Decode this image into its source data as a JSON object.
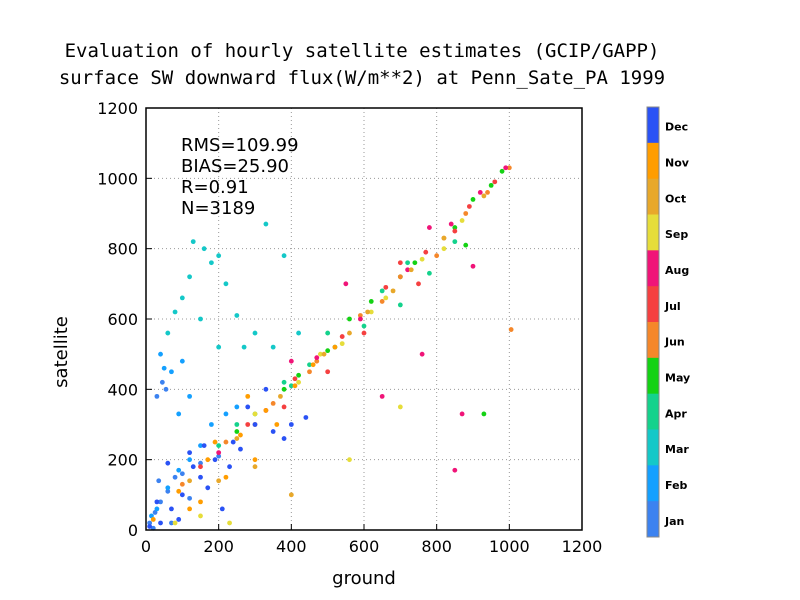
{
  "chart_data": {
    "type": "scatter",
    "title": [
      "Evaluation of hourly satellite estimates (GCIP/GAPP)",
      "surface SW downward flux(W/m**2) at Penn_Sate_PA 1999"
    ],
    "xlabel": "ground",
    "ylabel": "satellite",
    "xlim": [
      0,
      1200
    ],
    "ylim": [
      0,
      1200
    ],
    "xticks": [
      0,
      200,
      400,
      600,
      800,
      1000,
      1200
    ],
    "yticks": [
      0,
      200,
      400,
      600,
      800,
      1000,
      1200
    ],
    "grid": true,
    "stats": [
      "RMS=109.99",
      "BIAS=25.90",
      "R=0.91",
      "N=3189"
    ],
    "legend": {
      "placement": "right",
      "entries": [
        {
          "label": "Dec",
          "color": "#2a52f5"
        },
        {
          "label": "Nov",
          "color": "#ff9d00"
        },
        {
          "label": "Oct",
          "color": "#e8a82a"
        },
        {
          "label": "Sep",
          "color": "#e6dd3a"
        },
        {
          "label": "Aug",
          "color": "#f01478"
        },
        {
          "label": "Jul",
          "color": "#f54040"
        },
        {
          "label": "Jun",
          "color": "#f5872a"
        },
        {
          "label": "May",
          "color": "#14d214"
        },
        {
          "label": "Apr",
          "color": "#14d28c"
        },
        {
          "label": "Mar",
          "color": "#14c8c8"
        },
        {
          "label": "Feb",
          "color": "#14a0ff"
        },
        {
          "label": "Jan",
          "color": "#3c82f0"
        }
      ]
    },
    "series": [
      {
        "name": "Jan",
        "points": [
          [
            10,
            20
          ],
          [
            25,
            50
          ],
          [
            40,
            80
          ],
          [
            60,
            110
          ],
          [
            80,
            150
          ],
          [
            30,
            380
          ],
          [
            45,
            420
          ],
          [
            20,
            5
          ],
          [
            70,
            20
          ],
          [
            100,
            160
          ],
          [
            150,
            190
          ],
          [
            200,
            210
          ],
          [
            120,
            90
          ],
          [
            35,
            140
          ],
          [
            55,
            400
          ]
        ]
      },
      {
        "name": "Feb",
        "points": [
          [
            30,
            60
          ],
          [
            60,
            120
          ],
          [
            90,
            170
          ],
          [
            120,
            200
          ],
          [
            150,
            240
          ],
          [
            50,
            460
          ],
          [
            40,
            500
          ],
          [
            70,
            450
          ],
          [
            100,
            480
          ],
          [
            120,
            380
          ],
          [
            180,
            300
          ],
          [
            220,
            330
          ],
          [
            90,
            330
          ],
          [
            250,
            350
          ],
          [
            15,
            40
          ]
        ]
      },
      {
        "name": "Mar",
        "points": [
          [
            100,
            660
          ],
          [
            130,
            820
          ],
          [
            160,
            800
          ],
          [
            180,
            760
          ],
          [
            200,
            780
          ],
          [
            220,
            700
          ],
          [
            60,
            560
          ],
          [
            80,
            620
          ],
          [
            150,
            600
          ],
          [
            300,
            560
          ],
          [
            350,
            520
          ],
          [
            420,
            560
          ],
          [
            250,
            610
          ],
          [
            120,
            720
          ],
          [
            330,
            870
          ],
          [
            380,
            780
          ],
          [
            270,
            520
          ],
          [
            200,
            520
          ]
        ]
      },
      {
        "name": "Apr",
        "points": [
          [
            200,
            240
          ],
          [
            300,
            330
          ],
          [
            380,
            420
          ],
          [
            450,
            470
          ],
          [
            520,
            520
          ],
          [
            600,
            580
          ],
          [
            700,
            640
          ],
          [
            780,
            730
          ],
          [
            850,
            820
          ],
          [
            250,
            300
          ],
          [
            400,
            410
          ],
          [
            500,
            560
          ],
          [
            650,
            680
          ],
          [
            720,
            760
          ]
        ]
      },
      {
        "name": "May",
        "points": [
          [
            250,
            280
          ],
          [
            380,
            400
          ],
          [
            500,
            510
          ],
          [
            620,
            650
          ],
          [
            740,
            760
          ],
          [
            850,
            860
          ],
          [
            950,
            980
          ],
          [
            900,
            940
          ],
          [
            880,
            810
          ],
          [
            980,
            1020
          ],
          [
            700,
            720
          ],
          [
            560,
            600
          ],
          [
            420,
            440
          ],
          [
            930,
            330
          ]
        ]
      },
      {
        "name": "Jun",
        "points": [
          [
            100,
            130
          ],
          [
            220,
            250
          ],
          [
            350,
            360
          ],
          [
            470,
            480
          ],
          [
            590,
            610
          ],
          [
            700,
            720
          ],
          [
            820,
            830
          ],
          [
            940,
            960
          ],
          [
            1000,
            1030
          ],
          [
            300,
            300
          ],
          [
            450,
            450
          ],
          [
            650,
            650
          ],
          [
            800,
            780
          ],
          [
            880,
            900
          ],
          [
            1005,
            570
          ]
        ]
      },
      {
        "name": "Jul",
        "points": [
          [
            150,
            180
          ],
          [
            280,
            300
          ],
          [
            410,
            430
          ],
          [
            540,
            550
          ],
          [
            660,
            690
          ],
          [
            770,
            790
          ],
          [
            890,
            920
          ],
          [
            960,
            990
          ],
          [
            600,
            560
          ],
          [
            750,
            700
          ],
          [
            500,
            450
          ],
          [
            850,
            850
          ],
          [
            380,
            350
          ],
          [
            700,
            760
          ]
        ]
      },
      {
        "name": "Aug",
        "points": [
          [
            200,
            220
          ],
          [
            330,
            340
          ],
          [
            470,
            490
          ],
          [
            590,
            600
          ],
          [
            720,
            740
          ],
          [
            840,
            870
          ],
          [
            920,
            960
          ],
          [
            850,
            170
          ],
          [
            870,
            330
          ],
          [
            650,
            380
          ],
          [
            760,
            500
          ],
          [
            900,
            750
          ],
          [
            550,
            700
          ],
          [
            400,
            480
          ],
          [
            780,
            860
          ],
          [
            990,
            1030
          ]
        ]
      },
      {
        "name": "Sep",
        "points": [
          [
            80,
            20
          ],
          [
            150,
            40
          ],
          [
            230,
            20
          ],
          [
            300,
            330
          ],
          [
            420,
            420
          ],
          [
            540,
            530
          ],
          [
            660,
            660
          ],
          [
            760,
            770
          ],
          [
            870,
            880
          ],
          [
            700,
            350
          ],
          [
            560,
            200
          ],
          [
            620,
            620
          ],
          [
            820,
            800
          ],
          [
            480,
            500
          ]
        ]
      },
      {
        "name": "Oct",
        "points": [
          [
            120,
            140
          ],
          [
            250,
            260
          ],
          [
            370,
            380
          ],
          [
            490,
            500
          ],
          [
            610,
            620
          ],
          [
            730,
            740
          ],
          [
            820,
            830
          ],
          [
            930,
            950
          ],
          [
            400,
            100
          ],
          [
            300,
            180
          ],
          [
            200,
            140
          ],
          [
            560,
            560
          ],
          [
            680,
            680
          ]
        ]
      },
      {
        "name": "Nov",
        "points": [
          [
            20,
            30
          ],
          [
            90,
            110
          ],
          [
            170,
            200
          ],
          [
            260,
            270
          ],
          [
            330,
            340
          ],
          [
            410,
            410
          ],
          [
            220,
            150
          ],
          [
            150,
            80
          ],
          [
            300,
            200
          ],
          [
            460,
            470
          ],
          [
            360,
            300
          ],
          [
            190,
            250
          ],
          [
            120,
            60
          ],
          [
            520,
            520
          ],
          [
            280,
            380
          ]
        ]
      },
      {
        "name": "Dec",
        "points": [
          [
            10,
            10
          ],
          [
            40,
            20
          ],
          [
            70,
            60
          ],
          [
            100,
            100
          ],
          [
            150,
            150
          ],
          [
            190,
            200
          ],
          [
            240,
            250
          ],
          [
            300,
            300
          ],
          [
            60,
            190
          ],
          [
            120,
            220
          ],
          [
            170,
            120
          ],
          [
            230,
            180
          ],
          [
            280,
            350
          ],
          [
            330,
            400
          ],
          [
            350,
            280
          ],
          [
            400,
            300
          ],
          [
            440,
            320
          ],
          [
            210,
            60
          ],
          [
            90,
            30
          ],
          [
            30,
            80
          ],
          [
            160,
            240
          ],
          [
            260,
            230
          ],
          [
            380,
            260
          ],
          [
            130,
            180
          ]
        ]
      }
    ]
  }
}
